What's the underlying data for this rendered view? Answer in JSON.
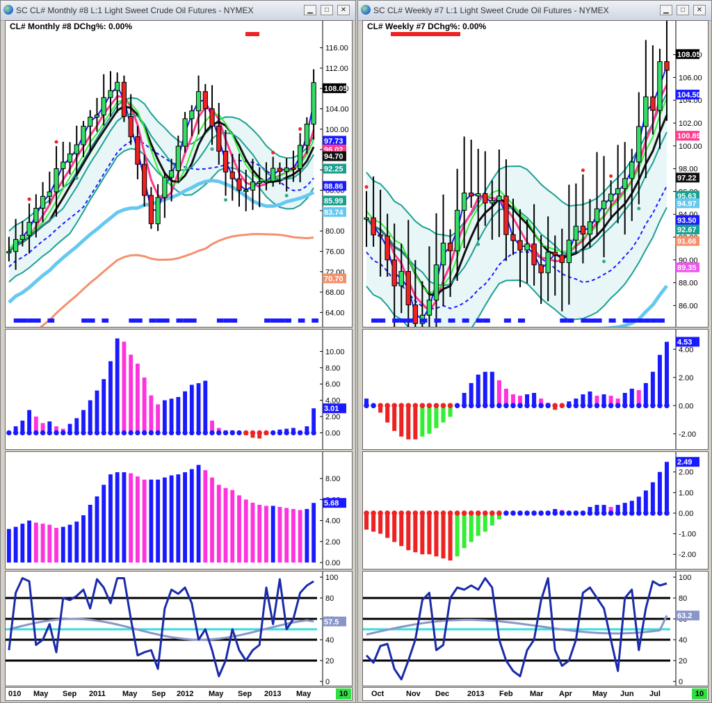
{
  "left": {
    "window_title": "SC CL#  Monthly #8  L:1  Light Sweet Crude Oil Futures - NYMEX",
    "header": "CL#  Monthly  #8 DChg%: 0.00%",
    "price_axis": [
      "116.00",
      "112.00",
      "108.00",
      "104.00",
      "100.00",
      "96.00",
      "92.00",
      "88.00",
      "84.00",
      "80.00",
      "76.00",
      "72.00",
      "68.00",
      "64.00"
    ],
    "price_tags": [
      {
        "text": "108.05",
        "bg": "#000000",
        "fg": "#ffffff",
        "v": 108.05
      },
      {
        "text": "97.73",
        "bg": "#1a1aff",
        "fg": "#ffffff",
        "v": 97.73
      },
      {
        "text": "96.02",
        "bg": "#ff3a8c",
        "fg": "#ffffff",
        "v": 96.02
      },
      {
        "text": "94.70",
        "bg": "#111111",
        "fg": "#ffffff",
        "v": 94.7
      },
      {
        "text": "92.25",
        "bg": "#1aa090",
        "fg": "#ffffff",
        "v": 92.25
      },
      {
        "text": "88.86",
        "bg": "#1a1aff",
        "fg": "#ffffff",
        "v": 88.86
      },
      {
        "text": "85.99",
        "bg": "#1aa090",
        "fg": "#ffffff",
        "v": 85.99
      },
      {
        "text": "83.74",
        "bg": "#66c8f0",
        "fg": "#ffffff",
        "v": 83.74
      },
      {
        "text": "70.70",
        "bg": "#f4906c",
        "fg": "#ffffff",
        "v": 70.7
      }
    ],
    "macd_axis": [
      "10.00",
      "8.00",
      "6.00",
      "4.00",
      "2.00",
      "0.00"
    ],
    "macd_tag": "3.01",
    "vol_axis": [
      "8.00",
      "6.00",
      "4.00",
      "2.00",
      "0.00"
    ],
    "vol_tag": "5.68",
    "osc_axis": [
      "100",
      "80",
      "60",
      "40",
      "20",
      "0"
    ],
    "osc_tag": "57.5",
    "x_labels": [
      "010",
      "May",
      "Sep",
      "2011",
      "May",
      "Sep",
      "2012",
      "May",
      "Sep",
      "2013",
      "May"
    ],
    "badge": "10"
  },
  "right": {
    "window_title": "SC CL#  Weekly  #7  L:1  Light Sweet Crude Oil Futures - NYMEX",
    "header": "CL#  Weekly  #7 DChg%: 0.00%",
    "price_axis": [
      "108.00",
      "106.00",
      "104.00",
      "102.00",
      "100.00",
      "98.00",
      "96.00",
      "94.00",
      "92.00",
      "90.00",
      "88.00",
      "86.00"
    ],
    "price_tags": [
      {
        "text": "108.05",
        "bg": "#000000",
        "fg": "#ffffff",
        "v": 108.05
      },
      {
        "text": "104.50",
        "bg": "#1a1aff",
        "fg": "#ffffff",
        "v": 104.5
      },
      {
        "text": "100.89",
        "bg": "#ff3a8c",
        "fg": "#ffffff",
        "v": 100.89
      },
      {
        "text": "97.22",
        "bg": "#111111",
        "fg": "#ffffff",
        "v": 97.22
      },
      {
        "text": "95.63",
        "bg": "#1aa090",
        "fg": "#ffffff",
        "v": 95.63
      },
      {
        "text": "94.97",
        "bg": "#66c8f0",
        "fg": "#ffffff",
        "v": 94.97
      },
      {
        "text": "93.50",
        "bg": "#1a1aff",
        "fg": "#ffffff",
        "v": 93.5
      },
      {
        "text": "92.67",
        "bg": "#1aa090",
        "fg": "#ffffff",
        "v": 92.67
      },
      {
        "text": "91.66",
        "bg": "#f4906c",
        "fg": "#ffffff",
        "v": 91.66
      },
      {
        "text": "89.35",
        "bg": "#ee55ee",
        "fg": "#ffffff",
        "v": 89.35
      }
    ],
    "macd_axis": [
      "4.00",
      "2.00",
      "0.00",
      "-2.00"
    ],
    "macd_tag": "4.53",
    "vol_axis": [
      "2.00",
      "1.00",
      "0.00",
      "-1.00",
      "-2.00"
    ],
    "vol_tag": "2.49",
    "osc_axis": [
      "100",
      "80",
      "60",
      "40",
      "20",
      "0"
    ],
    "osc_tag": "63.2",
    "x_labels": [
      "Oct",
      "Nov",
      "Dec",
      "2013",
      "Feb",
      "Mar",
      "Apr",
      "May",
      "Jun",
      "Jul"
    ],
    "badge": "10"
  },
  "colors": {
    "up": "#33dd66",
    "down": "#ee2222",
    "blue": "#1a1aff",
    "magenta": "#ff33dd",
    "teal": "#1aa090",
    "pink": "#ff3a8c",
    "lightblue": "#66c8f0",
    "salmon": "#f4906c"
  }
}
